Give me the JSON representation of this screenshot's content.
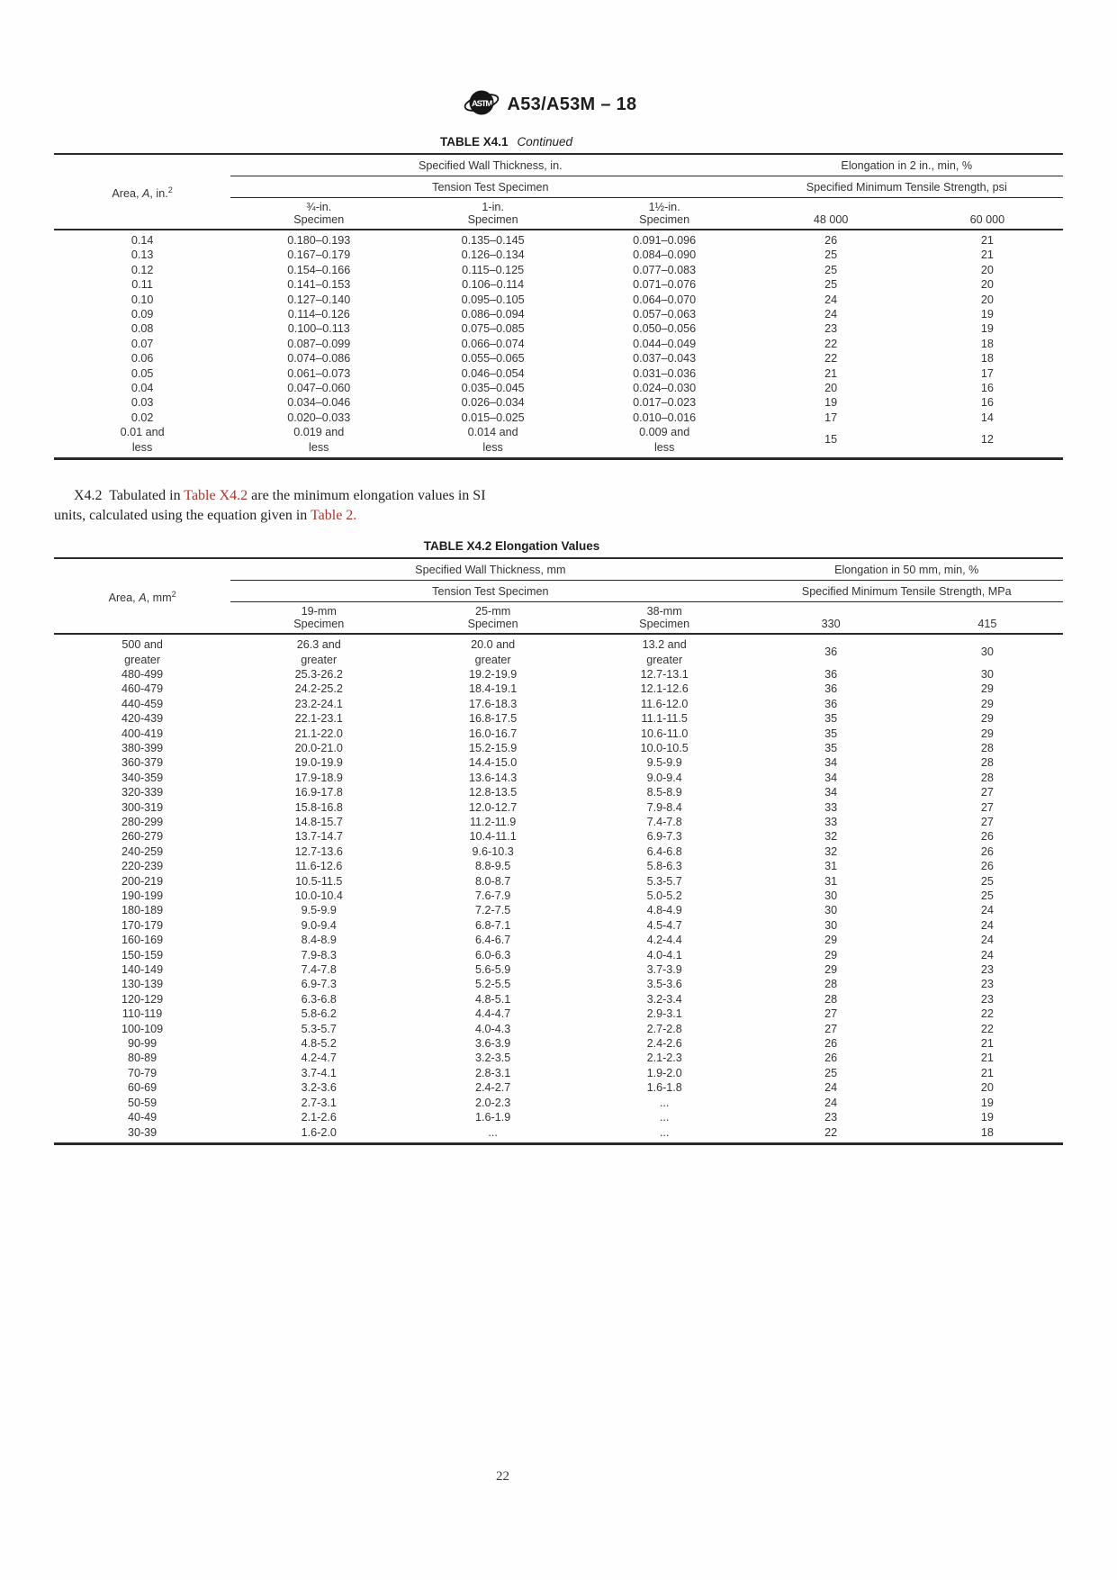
{
  "colors": {
    "link_red": "#a8352e",
    "text": "#2a2a2a",
    "background": "#fefefe"
  },
  "header": {
    "doc_code": "A53/A53M – 18",
    "logo_icon": "astm-logo"
  },
  "table_x41": {
    "title": "TABLE X4.1",
    "title_note": "Continued",
    "area_label": {
      "pre": "Area, ",
      "var": "A",
      "post": ", in.",
      "sup": "2"
    },
    "group_wall_thickness": "Specified Wall Thickness, in.",
    "group_elongation": "Elongation in 2 in., min, %",
    "sub_tension": "Tension Test Specimen",
    "sub_tensile": "Specified Minimum Tensile Strength, psi",
    "col_headers": [
      "¾-in.\nSpecimen",
      "1-in.\nSpecimen",
      "1½-in.\nSpecimen",
      "48 000",
      "60 000"
    ],
    "rows": [
      [
        "0.14",
        "0.180–0.193",
        "0.135–0.145",
        "0.091–0.096",
        "26",
        "21"
      ],
      [
        "0.13",
        "0.167–0.179",
        "0.126–0.134",
        "0.084–0.090",
        "25",
        "21"
      ],
      [
        "0.12",
        "0.154–0.166",
        "0.115–0.125",
        "0.077–0.083",
        "25",
        "20"
      ],
      [
        "0.11",
        "0.141–0.153",
        "0.106–0.114",
        "0.071–0.076",
        "25",
        "20"
      ],
      [
        "0.10",
        "0.127–0.140",
        "0.095–0.105",
        "0.064–0.070",
        "24",
        "20"
      ],
      [
        "0.09",
        "0.114–0.126",
        "0.086–0.094",
        "0.057–0.063",
        "24",
        "19"
      ],
      [
        "0.08",
        "0.100–0.113",
        "0.075–0.085",
        "0.050–0.056",
        "23",
        "19"
      ],
      [
        "0.07",
        "0.087–0.099",
        "0.066–0.074",
        "0.044–0.049",
        "22",
        "18"
      ],
      [
        "0.06",
        "0.074–0.086",
        "0.055–0.065",
        "0.037–0.043",
        "22",
        "18"
      ],
      [
        "0.05",
        "0.061–0.073",
        "0.046–0.054",
        "0.031–0.036",
        "21",
        "17"
      ],
      [
        "0.04",
        "0.047–0.060",
        "0.035–0.045",
        "0.024–0.030",
        "20",
        "16"
      ],
      [
        "0.03",
        "0.034–0.046",
        "0.026–0.034",
        "0.017–0.023",
        "19",
        "16"
      ],
      [
        "0.02",
        "0.020–0.033",
        "0.015–0.025",
        "0.010–0.016",
        "17",
        "14"
      ],
      [
        "0.01 and\nless",
        "0.019 and\nless",
        "0.014 and\nless",
        "0.009 and\nless",
        "15",
        "12"
      ]
    ]
  },
  "paragraph": {
    "segments": [
      {
        "text": "X4.2  Tabulated in ",
        "red": false
      },
      {
        "text": "Table X4.2",
        "red": true
      },
      {
        "text": " are the minimum elongation values in SI units, calculated using the equation given in ",
        "red": false
      },
      {
        "text": "Table 2.",
        "red": true
      }
    ]
  },
  "table_x42": {
    "title": "TABLE X4.2 Elongation Values",
    "area_label": {
      "pre": "Area, ",
      "var": "A",
      "post": ", mm",
      "sup": "2"
    },
    "group_wall_thickness": "Specified Wall Thickness, mm",
    "group_elongation": "Elongation in 50 mm, min, %",
    "sub_tension": "Tension Test Specimen",
    "sub_tensile": "Specified Minimum Tensile Strength, MPa",
    "col_headers": [
      "19-mm\nSpecimen",
      "25-mm\nSpecimen",
      "38-mm\nSpecimen",
      "330",
      "415"
    ],
    "rows": [
      [
        "500 and\ngreater",
        "26.3 and\ngreater",
        "20.0 and\ngreater",
        "13.2 and\ngreater",
        "36",
        "30"
      ],
      [
        "480-499",
        "25.3-26.2",
        "19.2-19.9",
        "12.7-13.1",
        "36",
        "30"
      ],
      [
        "460-479",
        "24.2-25.2",
        "18.4-19.1",
        "12.1-12.6",
        "36",
        "29"
      ],
      [
        "440-459",
        "23.2-24.1",
        "17.6-18.3",
        "11.6-12.0",
        "36",
        "29"
      ],
      [
        "420-439",
        "22.1-23.1",
        "16.8-17.5",
        "11.1-11.5",
        "35",
        "29"
      ],
      [
        "400-419",
        "21.1-22.0",
        "16.0-16.7",
        "10.6-11.0",
        "35",
        "29"
      ],
      [
        "380-399",
        "20.0-21.0",
        "15.2-15.9",
        "10.0-10.5",
        "35",
        "28"
      ],
      [
        "360-379",
        "19.0-19.9",
        "14.4-15.0",
        "9.5-9.9",
        "34",
        "28"
      ],
      [
        "340-359",
        "17.9-18.9",
        "13.6-14.3",
        "9.0-9.4",
        "34",
        "28"
      ],
      [
        "320-339",
        "16.9-17.8",
        "12.8-13.5",
        "8.5-8.9",
        "34",
        "27"
      ],
      [
        "300-319",
        "15.8-16.8",
        "12.0-12.7",
        "7.9-8.4",
        "33",
        "27"
      ],
      [
        "280-299",
        "14.8-15.7",
        "11.2-11.9",
        "7.4-7.8",
        "33",
        "27"
      ],
      [
        "260-279",
        "13.7-14.7",
        "10.4-11.1",
        "6.9-7.3",
        "32",
        "26"
      ],
      [
        "240-259",
        "12.7-13.6",
        "9.6-10.3",
        "6.4-6.8",
        "32",
        "26"
      ],
      [
        "220-239",
        "11.6-12.6",
        "8.8-9.5",
        "5.8-6.3",
        "31",
        "26"
      ],
      [
        "200-219",
        "10.5-11.5",
        "8.0-8.7",
        "5.3-5.7",
        "31",
        "25"
      ],
      [
        "190-199",
        "10.0-10.4",
        "7.6-7.9",
        "5.0-5.2",
        "30",
        "25"
      ],
      [
        "180-189",
        "9.5-9.9",
        "7.2-7.5",
        "4.8-4.9",
        "30",
        "24"
      ],
      [
        "170-179",
        "9.0-9.4",
        "6.8-7.1",
        "4.5-4.7",
        "30",
        "24"
      ],
      [
        "160-169",
        "8.4-8.9",
        "6.4-6.7",
        "4.2-4.4",
        "29",
        "24"
      ],
      [
        "150-159",
        "7.9-8.3",
        "6.0-6.3",
        "4.0-4.1",
        "29",
        "24"
      ],
      [
        "140-149",
        "7.4-7.8",
        "5.6-5.9",
        "3.7-3.9",
        "29",
        "23"
      ],
      [
        "130-139",
        "6.9-7.3",
        "5.2-5.5",
        "3.5-3.6",
        "28",
        "23"
      ],
      [
        "120-129",
        "6.3-6.8",
        "4.8-5.1",
        "3.2-3.4",
        "28",
        "23"
      ],
      [
        "110-119",
        "5.8-6.2",
        "4.4-4.7",
        "2.9-3.1",
        "27",
        "22"
      ],
      [
        "100-109",
        "5.3-5.7",
        "4.0-4.3",
        "2.7-2.8",
        "27",
        "22"
      ],
      [
        "90-99",
        "4.8-5.2",
        "3.6-3.9",
        "2.4-2.6",
        "26",
        "21"
      ],
      [
        "80-89",
        "4.2-4.7",
        "3.2-3.5",
        "2.1-2.3",
        "26",
        "21"
      ],
      [
        "70-79",
        "3.7-4.1",
        "2.8-3.1",
        "1.9-2.0",
        "25",
        "21"
      ],
      [
        "60-69",
        "3.2-3.6",
        "2.4-2.7",
        "1.6-1.8",
        "24",
        "20"
      ],
      [
        "50-59",
        "2.7-3.1",
        "2.0-2.3",
        "...",
        "24",
        "19"
      ],
      [
        "40-49",
        "2.1-2.6",
        "1.6-1.9",
        "...",
        "23",
        "19"
      ],
      [
        "30-39",
        "1.6-2.0",
        "...",
        "...",
        "22",
        "18"
      ]
    ]
  },
  "footer": {
    "page_number": "22"
  }
}
